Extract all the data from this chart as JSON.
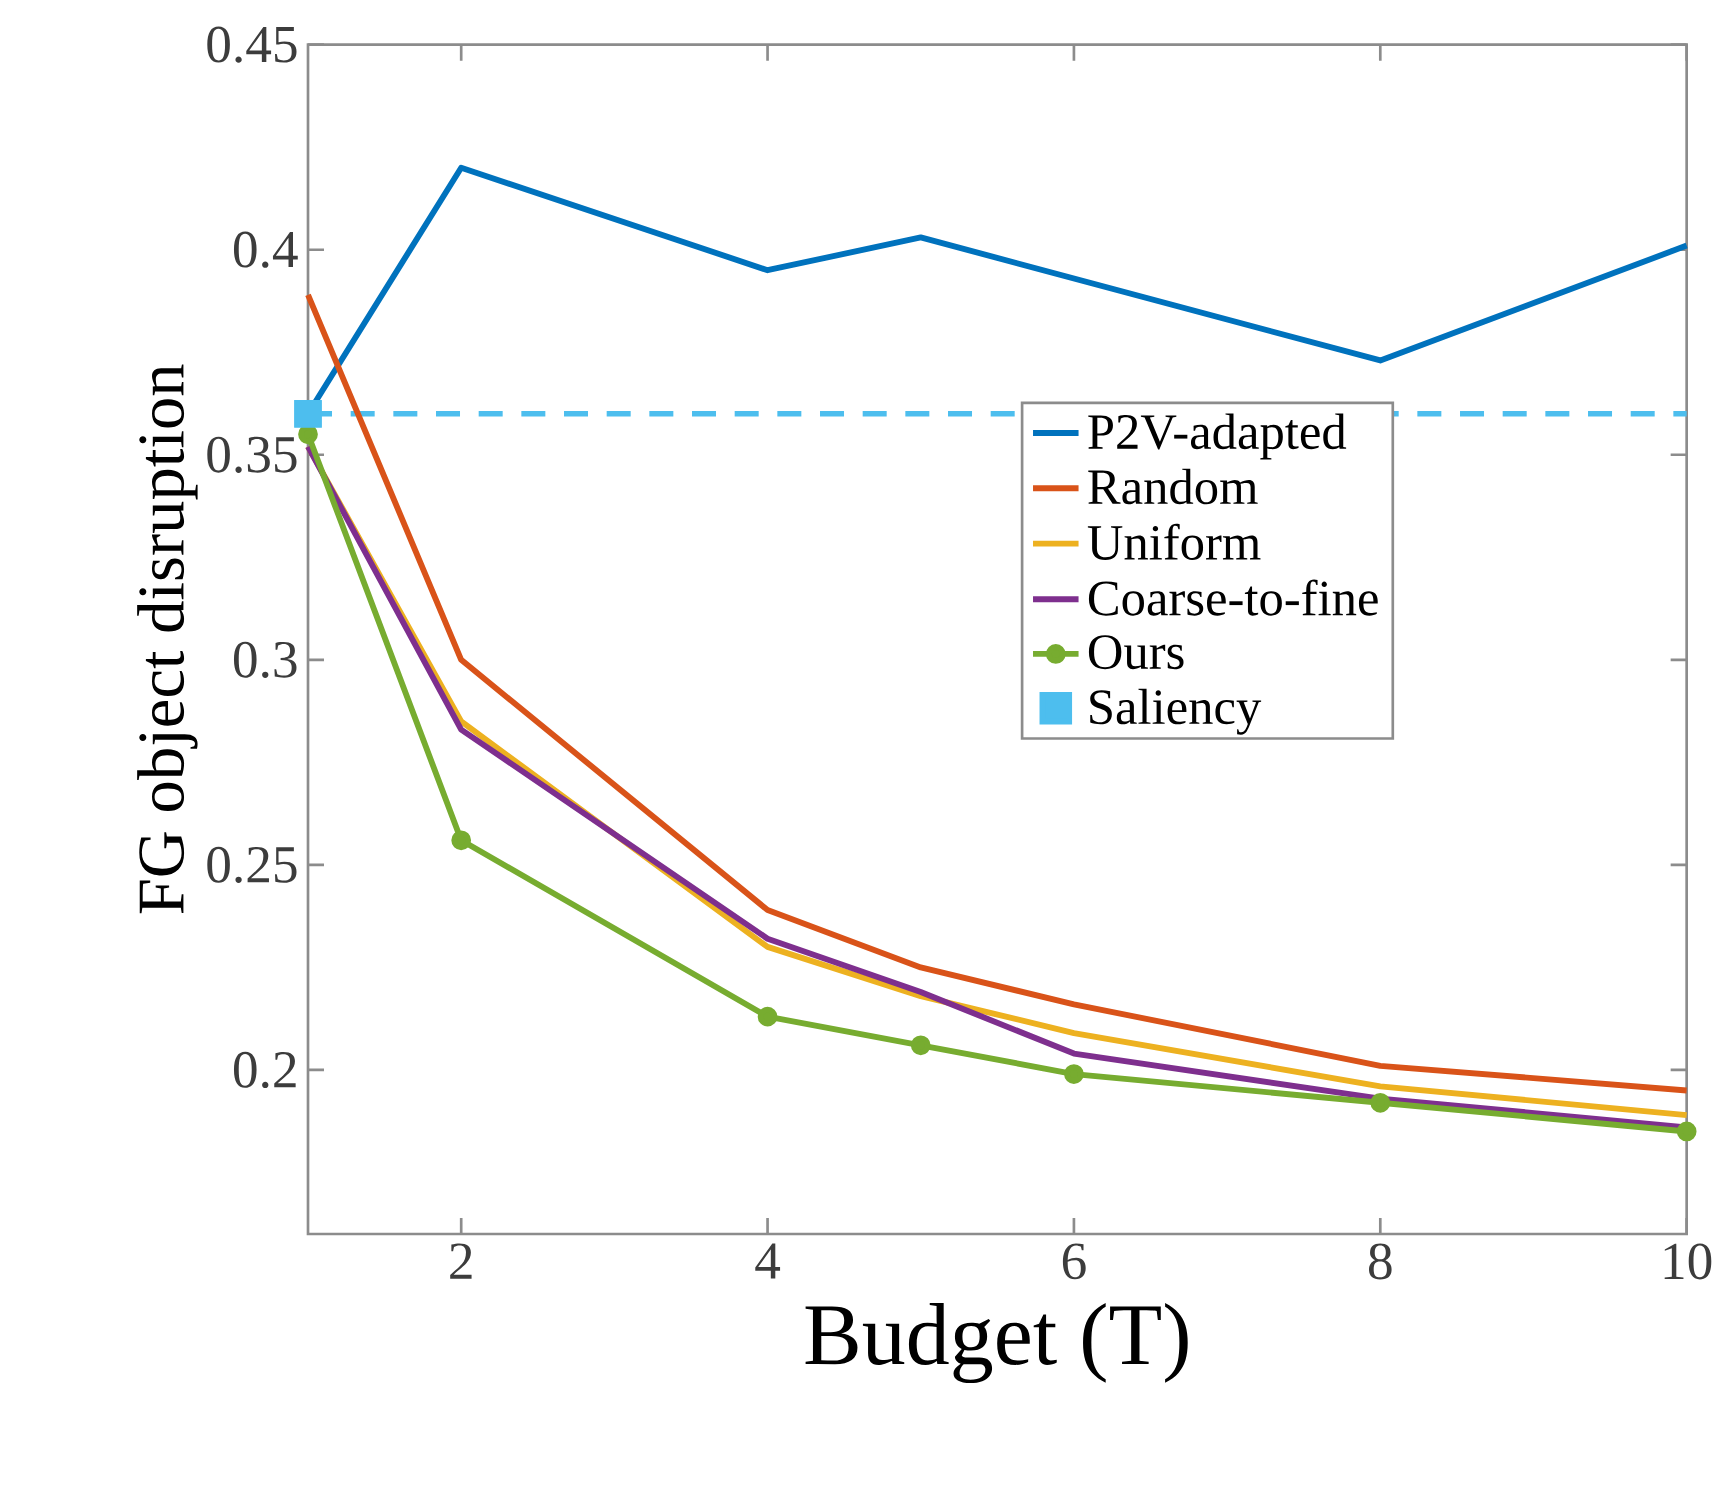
{
  "chart_data": {
    "type": "line",
    "xlabel": "Budget (T)",
    "ylabel": "FG object disruption",
    "xlim": [
      1,
      10
    ],
    "ylim": [
      0.16,
      0.45
    ],
    "xticks": [
      2,
      4,
      6,
      8,
      10
    ],
    "yticks": [
      0.2,
      0.25,
      0.3,
      0.35,
      0.4,
      0.45
    ],
    "grid": false,
    "legend": "right",
    "series": [
      {
        "name": "P2V-adapted",
        "color": "#0072bd",
        "x": [
          1,
          2,
          4,
          5,
          8,
          10
        ],
        "values": [
          0.36,
          0.42,
          0.395,
          0.403,
          0.373,
          0.401
        ]
      },
      {
        "name": "Random",
        "color": "#d95319",
        "x": [
          1,
          2,
          4,
          5,
          6,
          8,
          10
        ],
        "values": [
          0.389,
          0.3,
          0.239,
          0.225,
          0.216,
          0.201,
          0.195
        ]
      },
      {
        "name": "Uniform",
        "color": "#edb120",
        "x": [
          1,
          2,
          4,
          5,
          6,
          8,
          10
        ],
        "values": [
          0.352,
          0.285,
          0.23,
          0.218,
          0.209,
          0.196,
          0.189
        ]
      },
      {
        "name": "Coarse-to-fine",
        "color": "#7e2f8e",
        "x": [
          1,
          2,
          4,
          5,
          6,
          8,
          10
        ],
        "values": [
          0.352,
          0.283,
          0.232,
          0.219,
          0.204,
          0.193,
          0.186
        ]
      },
      {
        "name": "Ours",
        "color": "#77ac30",
        "marker": "circle",
        "x": [
          1,
          2,
          4,
          5,
          6,
          8,
          10
        ],
        "values": [
          0.355,
          0.256,
          0.213,
          0.206,
          0.199,
          0.192,
          0.185
        ]
      },
      {
        "name": "Saliency",
        "type": "scatter",
        "marker": "square",
        "color": "#4dbeee",
        "x": [
          1
        ],
        "values": [
          0.36
        ]
      }
    ],
    "ref_lines": [
      {
        "axis": "y",
        "value": 0.36,
        "color": "#4dbeee",
        "line_style": "dashed"
      }
    ]
  }
}
